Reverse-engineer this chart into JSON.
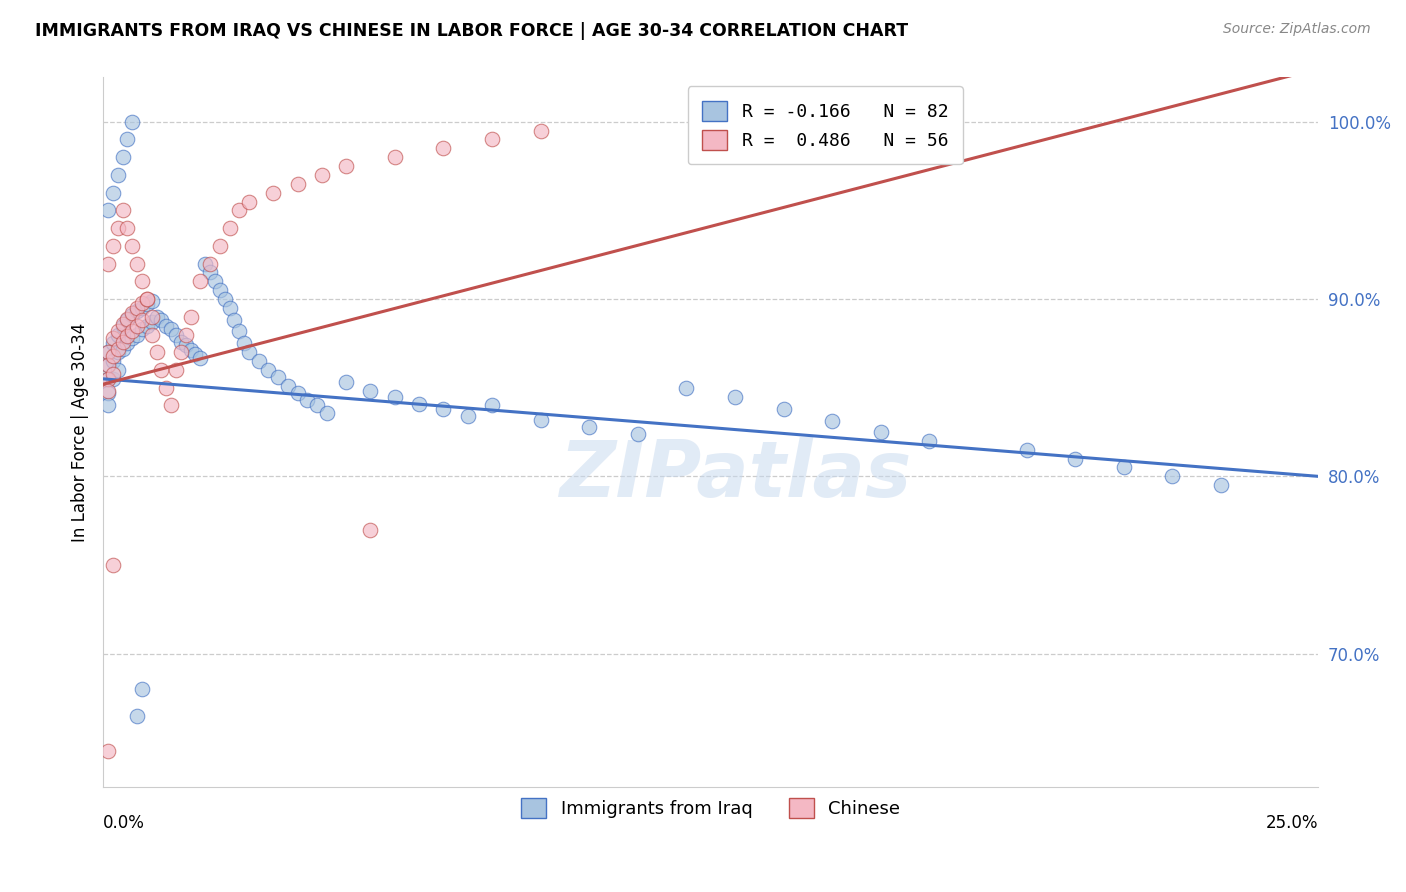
{
  "title": "IMMIGRANTS FROM IRAQ VS CHINESE IN LABOR FORCE | AGE 30-34 CORRELATION CHART",
  "source": "Source: ZipAtlas.com",
  "ylabel": "In Labor Force | Age 30-34",
  "ytick_labels": [
    "70.0%",
    "80.0%",
    "90.0%",
    "100.0%"
  ],
  "ytick_vals": [
    0.7,
    0.8,
    0.9,
    1.0
  ],
  "xmin": 0.0,
  "xmax": 0.25,
  "ymin": 0.625,
  "ymax": 1.025,
  "color_iraq": "#a8c4e0",
  "color_chinese": "#f4b8c4",
  "color_iraq_line": "#4472c4",
  "color_chinese_line": "#c0504d",
  "legend_label_iraq": "Immigrants from Iraq",
  "legend_label_chinese": "Chinese",
  "watermark": "ZIPatlas",
  "legend_r_iraq": "R = -0.166",
  "legend_n_iraq": "N = 82",
  "legend_r_chinese": "R =  0.486",
  "legend_n_chinese": "N = 56",
  "iraq_x": [
    0.001,
    0.001,
    0.001,
    0.001,
    0.001,
    0.002,
    0.002,
    0.002,
    0.003,
    0.003,
    0.003,
    0.004,
    0.004,
    0.005,
    0.005,
    0.006,
    0.006,
    0.007,
    0.007,
    0.008,
    0.008,
    0.009,
    0.009,
    0.01,
    0.01,
    0.011,
    0.012,
    0.013,
    0.014,
    0.015,
    0.016,
    0.017,
    0.018,
    0.019,
    0.02,
    0.021,
    0.022,
    0.023,
    0.024,
    0.025,
    0.026,
    0.027,
    0.028,
    0.029,
    0.03,
    0.032,
    0.034,
    0.036,
    0.038,
    0.04,
    0.042,
    0.044,
    0.046,
    0.05,
    0.055,
    0.06,
    0.065,
    0.07,
    0.075,
    0.08,
    0.09,
    0.1,
    0.11,
    0.12,
    0.13,
    0.14,
    0.15,
    0.16,
    0.17,
    0.19,
    0.2,
    0.21,
    0.22,
    0.23,
    0.001,
    0.002,
    0.003,
    0.004,
    0.005,
    0.006,
    0.007,
    0.008
  ],
  "iraq_y": [
    0.87,
    0.863,
    0.855,
    0.847,
    0.84,
    0.875,
    0.865,
    0.855,
    0.88,
    0.87,
    0.86,
    0.885,
    0.872,
    0.888,
    0.875,
    0.891,
    0.878,
    0.893,
    0.88,
    0.895,
    0.883,
    0.897,
    0.885,
    0.899,
    0.887,
    0.89,
    0.888,
    0.885,
    0.883,
    0.88,
    0.876,
    0.874,
    0.871,
    0.869,
    0.867,
    0.92,
    0.915,
    0.91,
    0.905,
    0.9,
    0.895,
    0.888,
    0.882,
    0.875,
    0.87,
    0.865,
    0.86,
    0.856,
    0.851,
    0.847,
    0.843,
    0.84,
    0.836,
    0.853,
    0.848,
    0.845,
    0.841,
    0.838,
    0.834,
    0.84,
    0.832,
    0.828,
    0.824,
    0.85,
    0.845,
    0.838,
    0.831,
    0.825,
    0.82,
    0.815,
    0.81,
    0.805,
    0.8,
    0.795,
    0.95,
    0.96,
    0.97,
    0.98,
    0.99,
    1.0,
    0.665,
    0.68
  ],
  "chinese_x": [
    0.001,
    0.001,
    0.001,
    0.001,
    0.002,
    0.002,
    0.002,
    0.003,
    0.003,
    0.004,
    0.004,
    0.005,
    0.005,
    0.006,
    0.006,
    0.007,
    0.007,
    0.008,
    0.008,
    0.009,
    0.01,
    0.01,
    0.011,
    0.012,
    0.013,
    0.014,
    0.015,
    0.016,
    0.017,
    0.018,
    0.02,
    0.022,
    0.024,
    0.026,
    0.028,
    0.03,
    0.035,
    0.04,
    0.045,
    0.05,
    0.06,
    0.07,
    0.08,
    0.09,
    0.001,
    0.002,
    0.003,
    0.004,
    0.005,
    0.006,
    0.007,
    0.008,
    0.009,
    0.055,
    0.001,
    0.002
  ],
  "chinese_y": [
    0.87,
    0.863,
    0.855,
    0.848,
    0.878,
    0.868,
    0.858,
    0.882,
    0.872,
    0.886,
    0.876,
    0.889,
    0.879,
    0.892,
    0.882,
    0.895,
    0.885,
    0.898,
    0.888,
    0.9,
    0.89,
    0.88,
    0.87,
    0.86,
    0.85,
    0.84,
    0.86,
    0.87,
    0.88,
    0.89,
    0.91,
    0.92,
    0.93,
    0.94,
    0.95,
    0.955,
    0.96,
    0.965,
    0.97,
    0.975,
    0.98,
    0.985,
    0.99,
    0.995,
    0.92,
    0.93,
    0.94,
    0.95,
    0.94,
    0.93,
    0.92,
    0.91,
    0.9,
    0.77,
    0.645,
    0.75
  ]
}
